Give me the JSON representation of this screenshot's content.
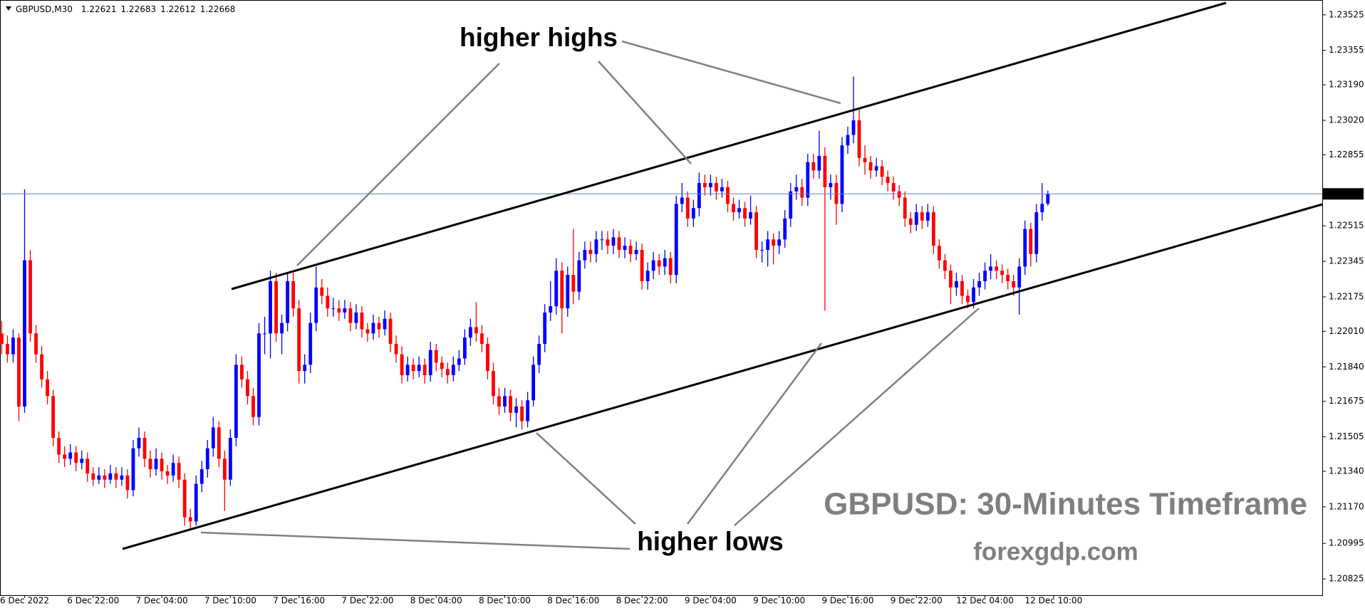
{
  "chart_data": {
    "type": "candlestick",
    "symbol": "GBPUSD,M30",
    "up_color": "#0000ff",
    "down_color": "#ff0000",
    "price_line_color": "#6a7fc2",
    "annotations": [
      "higher highs",
      "higher lows"
    ],
    "watermark": "GBPUSD: 30-Minutes Timeframe",
    "site": "forexgdp.com",
    "xlim": [
      -0.3,
      231
    ],
    "ylim": [
      1.20747,
      1.23596
    ],
    "xticks": [
      {
        "value": 4,
        "label": "6 Dec 2022"
      },
      {
        "value": 16,
        "label": "6 Dec 22:00"
      },
      {
        "value": 28,
        "label": "7 Dec 04:00"
      },
      {
        "value": 40,
        "label": "7 Dec 10:00"
      },
      {
        "value": 52,
        "label": "7 Dec 16:00"
      },
      {
        "value": 64,
        "label": "7 Dec 22:00"
      },
      {
        "value": 76,
        "label": "8 Dec 04:00"
      },
      {
        "value": 88,
        "label": "8 Dec 10:00"
      },
      {
        "value": 100,
        "label": "8 Dec 16:00"
      },
      {
        "value": 112,
        "label": "8 Dec 22:00"
      },
      {
        "value": 124,
        "label": "9 Dec 04:00"
      },
      {
        "value": 136,
        "label": "9 Dec 10:00"
      },
      {
        "value": 148,
        "label": "9 Dec 16:00"
      },
      {
        "value": 160,
        "label": "9 Dec 22:00"
      },
      {
        "value": 172,
        "label": "12 Dec 04:00"
      },
      {
        "value": 184,
        "label": "12 Dec 10:00"
      }
    ],
    "yticks": [
      1.20825,
      1.20995,
      {
        "value": 1.2117,
        "label": "1.21170"
      },
      {
        "value": 1.2134,
        "label": "1.21340"
      },
      1.21505,
      1.21675,
      {
        "value": 1.2184,
        "label": "1.21840"
      },
      {
        "value": 1.2201,
        "label": "1.22010"
      },
      1.22175,
      1.22345,
      1.22515,
      1.22855,
      {
        "value": 1.2302,
        "label": "1.23020"
      },
      {
        "value": 1.2319,
        "label": "1.23190"
      },
      1.23355,
      1.23525
    ],
    "candles": [
      [
        1.22,
        1.2206,
        1.219,
        1.2195
      ],
      [
        1.2195,
        1.2199,
        1.2186,
        1.219
      ],
      [
        1.219,
        1.2202,
        1.2186,
        1.2198
      ],
      [
        1.2198,
        1.22,
        1.2158,
        1.2165
      ],
      [
        1.2165,
        1.2269,
        1.2162,
        1.2235
      ],
      [
        1.2235,
        1.224,
        1.2196,
        1.22
      ],
      [
        1.22,
        1.2204,
        1.2186,
        1.219
      ],
      [
        1.219,
        1.2194,
        1.2174,
        1.2178
      ],
      [
        1.2178,
        1.2182,
        1.2166,
        1.217
      ],
      [
        1.217,
        1.2173,
        1.2146,
        1.215
      ],
      [
        1.215,
        1.2153,
        1.2138,
        1.2142
      ],
      [
        1.2142,
        1.2146,
        1.2136,
        1.214
      ],
      [
        1.214,
        1.2147,
        1.2137,
        1.2143
      ],
      [
        1.2143,
        1.2146,
        1.2134,
        1.2138
      ],
      [
        1.2138,
        1.2144,
        1.2135,
        1.214
      ],
      [
        1.214,
        1.2143,
        1.2129,
        1.2133
      ],
      [
        1.2133,
        1.2136,
        1.2127,
        1.213
      ],
      [
        1.213,
        1.2136,
        1.2128,
        1.2132
      ],
      [
        1.2132,
        1.2135,
        1.2126,
        1.213
      ],
      [
        1.213,
        1.2137,
        1.2128,
        1.2133
      ],
      [
        1.2133,
        1.2136,
        1.2126,
        1.213
      ],
      [
        1.213,
        1.2136,
        1.2127,
        1.2132
      ],
      [
        1.2132,
        1.2135,
        1.2121,
        1.2125
      ],
      [
        1.2125,
        1.2149,
        1.2122,
        1.2145
      ],
      [
        1.2145,
        1.2155,
        1.2141,
        1.215
      ],
      [
        1.215,
        1.2153,
        1.2136,
        1.214
      ],
      [
        1.214,
        1.2144,
        1.2131,
        1.2135
      ],
      [
        1.2135,
        1.2145,
        1.2132,
        1.214
      ],
      [
        1.214,
        1.2143,
        1.213,
        1.2134
      ],
      [
        1.2134,
        1.2137,
        1.2128,
        1.2132
      ],
      [
        1.2132,
        1.2142,
        1.2129,
        1.2138
      ],
      [
        1.2138,
        1.2141,
        1.2126,
        1.213
      ],
      [
        1.213,
        1.2133,
        1.2108,
        1.2112
      ],
      [
        1.2112,
        1.2116,
        1.2106,
        1.211
      ],
      [
        1.211,
        1.2132,
        1.2108,
        1.2128
      ],
      [
        1.2128,
        1.2139,
        1.2124,
        1.2135
      ],
      [
        1.2135,
        1.2149,
        1.2131,
        1.2145
      ],
      [
        1.2145,
        1.216,
        1.2141,
        1.2155
      ],
      [
        1.2155,
        1.2158,
        1.2136,
        1.214
      ],
      [
        1.214,
        1.2144,
        1.2115,
        1.213
      ],
      [
        1.213,
        1.2154,
        1.2127,
        1.215
      ],
      [
        1.215,
        1.219,
        1.2146,
        1.2185
      ],
      [
        1.2185,
        1.2189,
        1.2174,
        1.2178
      ],
      [
        1.2178,
        1.2182,
        1.2166,
        1.217
      ],
      [
        1.217,
        1.2174,
        1.2156,
        1.216
      ],
      [
        1.216,
        1.2205,
        1.2156,
        1.22
      ],
      [
        1.22,
        1.2208,
        1.219,
        1.22
      ],
      [
        1.22,
        1.223,
        1.2188,
        1.2225
      ],
      [
        1.2225,
        1.2229,
        1.2196,
        1.22
      ],
      [
        1.22,
        1.2209,
        1.219,
        1.2205
      ],
      [
        1.2205,
        1.2229,
        1.2201,
        1.2225
      ],
      [
        1.2225,
        1.2229,
        1.2208,
        1.2212
      ],
      [
        1.2212,
        1.2216,
        1.2176,
        1.2182
      ],
      [
        1.2182,
        1.219,
        1.2176,
        1.2185
      ],
      [
        1.2185,
        1.221,
        1.2181,
        1.2205
      ],
      [
        1.2205,
        1.2232,
        1.2201,
        1.2222
      ],
      [
        1.2222,
        1.2226,
        1.2214,
        1.2218
      ],
      [
        1.2218,
        1.2222,
        1.2208,
        1.2212
      ],
      [
        1.2212,
        1.2217,
        1.2208,
        1.2212
      ],
      [
        1.2212,
        1.2216,
        1.2206,
        1.221
      ],
      [
        1.221,
        1.2216,
        1.2207,
        1.2212
      ],
      [
        1.2212,
        1.2215,
        1.2201,
        1.2205
      ],
      [
        1.2205,
        1.2214,
        1.2202,
        1.221
      ],
      [
        1.221,
        1.2213,
        1.2198,
        1.2202
      ],
      [
        1.2202,
        1.2205,
        1.2196,
        1.22
      ],
      [
        1.22,
        1.2209,
        1.2197,
        1.2205
      ],
      [
        1.2205,
        1.2208,
        1.2198,
        1.2202
      ],
      [
        1.2202,
        1.2211,
        1.2199,
        1.2207
      ],
      [
        1.2207,
        1.221,
        1.2191,
        1.2195
      ],
      [
        1.2195,
        1.2199,
        1.2186,
        1.219
      ],
      [
        1.219,
        1.2194,
        1.2176,
        1.218
      ],
      [
        1.218,
        1.2189,
        1.2177,
        1.2185
      ],
      [
        1.2185,
        1.2188,
        1.2178,
        1.2182
      ],
      [
        1.2182,
        1.2189,
        1.2179,
        1.2185
      ],
      [
        1.2185,
        1.2188,
        1.2176,
        1.218
      ],
      [
        1.218,
        1.2196,
        1.2177,
        1.2192
      ],
      [
        1.2192,
        1.2195,
        1.2182,
        1.2186
      ],
      [
        1.2186,
        1.2189,
        1.2179,
        1.2183
      ],
      [
        1.2183,
        1.2186,
        1.2176,
        1.218
      ],
      [
        1.218,
        1.2189,
        1.2177,
        1.2185
      ],
      [
        1.2185,
        1.2192,
        1.2182,
        1.2188
      ],
      [
        1.2188,
        1.2202,
        1.2185,
        1.2198
      ],
      [
        1.2198,
        1.2207,
        1.2194,
        1.2203
      ],
      [
        1.2203,
        1.2215,
        1.2196,
        1.22
      ],
      [
        1.22,
        1.2204,
        1.2191,
        1.2195
      ],
      [
        1.2195,
        1.2198,
        1.2178,
        1.2182
      ],
      [
        1.2182,
        1.2186,
        1.2166,
        1.217
      ],
      [
        1.217,
        1.2174,
        1.2161,
        1.2165
      ],
      [
        1.2165,
        1.2174,
        1.2162,
        1.217
      ],
      [
        1.217,
        1.2173,
        1.2158,
        1.2162
      ],
      [
        1.2162,
        1.2169,
        1.2155,
        1.2165
      ],
      [
        1.2165,
        1.2168,
        1.2154,
        1.2158
      ],
      [
        1.2158,
        1.2172,
        1.2155,
        1.2168
      ],
      [
        1.2168,
        1.2189,
        1.2165,
        1.2185
      ],
      [
        1.2185,
        1.2199,
        1.2181,
        1.2195
      ],
      [
        1.2195,
        1.2214,
        1.2191,
        1.221
      ],
      [
        1.221,
        1.2225,
        1.2206,
        1.2213
      ],
      [
        1.2213,
        1.2236,
        1.2209,
        1.223
      ],
      [
        1.223,
        1.2234,
        1.22,
        1.2212
      ],
      [
        1.2212,
        1.2232,
        1.2208,
        1.2228
      ],
      [
        1.2228,
        1.225,
        1.2214,
        1.222
      ],
      [
        1.222,
        1.2239,
        1.2216,
        1.2235
      ],
      [
        1.2235,
        1.2244,
        1.2231,
        1.224
      ],
      [
        1.224,
        1.2244,
        1.2234,
        1.2238
      ],
      [
        1.2238,
        1.2249,
        1.2234,
        1.2245
      ],
      [
        1.2245,
        1.2249,
        1.224,
        1.2245
      ],
      [
        1.2245,
        1.2249,
        1.2238,
        1.2242
      ],
      [
        1.2242,
        1.225,
        1.2238,
        1.2246
      ],
      [
        1.2246,
        1.2249,
        1.2236,
        1.224
      ],
      [
        1.224,
        1.2246,
        1.2236,
        1.2242
      ],
      [
        1.2242,
        1.2245,
        1.2234,
        1.2238
      ],
      [
        1.2238,
        1.2244,
        1.2235,
        1.224
      ],
      [
        1.224,
        1.2243,
        1.2221,
        1.2225
      ],
      [
        1.2225,
        1.2234,
        1.2221,
        1.223
      ],
      [
        1.223,
        1.2239,
        1.2226,
        1.2235
      ],
      [
        1.2235,
        1.2238,
        1.2228,
        1.2232
      ],
      [
        1.2232,
        1.224,
        1.2228,
        1.2236
      ],
      [
        1.2236,
        1.2239,
        1.2224,
        1.2228
      ],
      [
        1.2228,
        1.2266,
        1.2224,
        1.2262
      ],
      [
        1.2262,
        1.2272,
        1.2258,
        1.2265
      ],
      [
        1.2265,
        1.2268,
        1.2251,
        1.2255
      ],
      [
        1.2255,
        1.2264,
        1.2251,
        1.226
      ],
      [
        1.226,
        1.2277,
        1.2256,
        1.2272
      ],
      [
        1.2272,
        1.2276,
        1.2266,
        1.227
      ],
      [
        1.227,
        1.2276,
        1.2266,
        1.2272
      ],
      [
        1.2272,
        1.2275,
        1.2264,
        1.2268
      ],
      [
        1.2268,
        1.2274,
        1.2265,
        1.227
      ],
      [
        1.227,
        1.2273,
        1.2258,
        1.2262
      ],
      [
        1.2262,
        1.2265,
        1.2254,
        1.2258
      ],
      [
        1.2258,
        1.2264,
        1.2255,
        1.226
      ],
      [
        1.226,
        1.2263,
        1.2251,
        1.2255
      ],
      [
        1.2255,
        1.2266,
        1.2252,
        1.2258
      ],
      [
        1.2258,
        1.2261,
        1.2236,
        1.224
      ],
      [
        1.224,
        1.2244,
        1.2234,
        1.224
      ],
      [
        1.224,
        1.2249,
        1.2232,
        1.2245
      ],
      [
        1.2245,
        1.2248,
        1.2233,
        1.2242
      ],
      [
        1.2242,
        1.2249,
        1.2238,
        1.2245
      ],
      [
        1.2245,
        1.2259,
        1.2241,
        1.2255
      ],
      [
        1.2255,
        1.2272,
        1.2251,
        1.2268
      ],
      [
        1.2268,
        1.2276,
        1.2264,
        1.227
      ],
      [
        1.227,
        1.2274,
        1.2261,
        1.2265
      ],
      [
        1.2265,
        1.2286,
        1.2261,
        1.2282
      ],
      [
        1.2282,
        1.2286,
        1.2274,
        1.2278
      ],
      [
        1.2278,
        1.2297,
        1.2274,
        1.2285
      ],
      [
        1.2285,
        1.2289,
        1.2211,
        1.227
      ],
      [
        1.227,
        1.2276,
        1.2264,
        1.2272
      ],
      [
        1.2272,
        1.2276,
        1.2252,
        1.2262
      ],
      [
        1.2262,
        1.2294,
        1.2258,
        1.229
      ],
      [
        1.229,
        1.2299,
        1.2286,
        1.2295
      ],
      [
        1.2295,
        1.2323,
        1.2291,
        1.2302
      ],
      [
        1.2302,
        1.2308,
        1.228,
        1.2284
      ],
      [
        1.2284,
        1.229,
        1.2276,
        1.2282
      ],
      [
        1.2282,
        1.2285,
        1.2274,
        1.2278
      ],
      [
        1.2278,
        1.2284,
        1.2275,
        1.228
      ],
      [
        1.228,
        1.2283,
        1.2271,
        1.2275
      ],
      [
        1.2275,
        1.2278,
        1.2268,
        1.2272
      ],
      [
        1.2272,
        1.2275,
        1.2264,
        1.2268
      ],
      [
        1.2268,
        1.2271,
        1.2261,
        1.2265
      ],
      [
        1.2265,
        1.2268,
        1.2251,
        1.2255
      ],
      [
        1.2255,
        1.2258,
        1.2248,
        1.2252
      ],
      [
        1.2252,
        1.2262,
        1.2249,
        1.2258
      ],
      [
        1.2258,
        1.2261,
        1.225,
        1.2254
      ],
      [
        1.2254,
        1.2262,
        1.2251,
        1.2258
      ],
      [
        1.2258,
        1.2261,
        1.2238,
        1.2242
      ],
      [
        1.2242,
        1.2245,
        1.2231,
        1.2235
      ],
      [
        1.2235,
        1.2238,
        1.2226,
        1.223
      ],
      [
        1.223,
        1.2233,
        1.2214,
        1.2222
      ],
      [
        1.2222,
        1.2229,
        1.2218,
        1.2225
      ],
      [
        1.2225,
        1.2228,
        1.2214,
        1.2218
      ],
      [
        1.2218,
        1.2221,
        1.2212,
        1.2215
      ],
      [
        1.2215,
        1.2226,
        1.2212,
        1.2222
      ],
      [
        1.2222,
        1.2229,
        1.2218,
        1.2225
      ],
      [
        1.2225,
        1.2234,
        1.2221,
        1.223
      ],
      [
        1.223,
        1.2238,
        1.2226,
        1.2232
      ],
      [
        1.2232,
        1.2235,
        1.2226,
        1.223
      ],
      [
        1.223,
        1.2233,
        1.2224,
        1.2228
      ],
      [
        1.2228,
        1.2231,
        1.2221,
        1.2225
      ],
      [
        1.2225,
        1.2228,
        1.2218,
        1.2222
      ],
      [
        1.2222,
        1.2236,
        1.2209,
        1.2232
      ],
      [
        1.2232,
        1.2254,
        1.2228,
        1.225
      ],
      [
        1.225,
        1.2253,
        1.2232,
        1.2238
      ],
      [
        1.2238,
        1.2262,
        1.2234,
        1.2258
      ],
      [
        1.2258,
        1.2272,
        1.2254,
        1.2262
      ],
      [
        1.22621,
        1.22683,
        1.22612,
        1.22668
      ]
    ]
  }
}
